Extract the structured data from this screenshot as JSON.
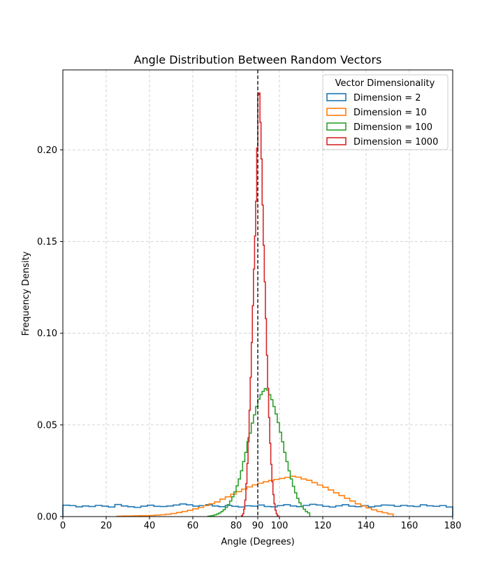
{
  "chart_data": {
    "type": "histogram",
    "title": "Angle Distribution Between Random Vectors",
    "xlabel": "Angle (Degrees)",
    "ylabel": "Frequency Density",
    "xlim": [
      0,
      180
    ],
    "ylim": [
      0,
      0.2436
    ],
    "xticks": [
      0,
      20,
      40,
      60,
      80,
      90,
      100,
      120,
      140,
      160,
      180
    ],
    "xtick_labels": [
      "0",
      "20",
      "40",
      "60",
      "80",
      "90",
      "100",
      "120",
      "140",
      "160",
      "180"
    ],
    "yticks": [
      0.0,
      0.05,
      0.1,
      0.15,
      0.2
    ],
    "ytick_labels": [
      "0.00",
      "0.05",
      "0.10",
      "0.15",
      "0.20"
    ],
    "grid": true,
    "reference_line": {
      "x": 90,
      "style": "dashed",
      "color": "#000000"
    },
    "legend": {
      "title": "Vector Dimensionality",
      "placement": "top-right"
    },
    "series": [
      {
        "name": "Dimension = 2",
        "color": "#1f77b4",
        "bin_width": 3,
        "bin_start": 0,
        "values": [
          0.0062,
          0.006,
          0.0053,
          0.0058,
          0.0055,
          0.0061,
          0.0057,
          0.0052,
          0.0066,
          0.0058,
          0.0054,
          0.005,
          0.0057,
          0.0062,
          0.0056,
          0.0055,
          0.0058,
          0.0063,
          0.0069,
          0.0064,
          0.0057,
          0.006,
          0.0065,
          0.0058,
          0.0054,
          0.0061,
          0.0056,
          0.0052,
          0.0059,
          0.0057,
          0.0063,
          0.0055,
          0.0053,
          0.006,
          0.0065,
          0.0058,
          0.0054,
          0.0061,
          0.0067,
          0.0063,
          0.0056,
          0.0052,
          0.0059,
          0.0065,
          0.0057,
          0.0054,
          0.006,
          0.0053,
          0.0058,
          0.0063,
          0.0062,
          0.0056,
          0.0061,
          0.0058,
          0.0055,
          0.0064,
          0.0059,
          0.0056,
          0.006,
          0.0052
        ]
      },
      {
        "name": "Dimension = 10",
        "color": "#ff7f0e",
        "bin_width": 2.5,
        "bin_start": 25,
        "values": [
          0.0002,
          0.0003,
          0.0003,
          0.0004,
          0.0005,
          0.0005,
          0.0006,
          0.0008,
          0.001,
          0.0013,
          0.0017,
          0.0022,
          0.0028,
          0.0034,
          0.0042,
          0.005,
          0.006,
          0.007,
          0.008,
          0.0095,
          0.0108,
          0.0122,
          0.0136,
          0.015,
          0.0162,
          0.0173,
          0.0182,
          0.019,
          0.0197,
          0.0203,
          0.0208,
          0.0214,
          0.022,
          0.0215,
          0.0205,
          0.0198,
          0.0185,
          0.0172,
          0.016,
          0.0145,
          0.013,
          0.0115,
          0.01,
          0.0085,
          0.007,
          0.0058,
          0.0047,
          0.0037,
          0.0028,
          0.0021,
          0.0014
        ]
      },
      {
        "name": "Dimension = 100",
        "color": "#2ca02c",
        "bin_width": 1,
        "bin_start": 67,
        "values": [
          0.0002,
          0.0004,
          0.0006,
          0.001,
          0.0014,
          0.002,
          0.0028,
          0.0038,
          0.005,
          0.0065,
          0.0085,
          0.0108,
          0.0135,
          0.0168,
          0.0205,
          0.025,
          0.03,
          0.035,
          0.0408,
          0.0455,
          0.051,
          0.0555,
          0.06,
          0.064,
          0.0665,
          0.0683,
          0.0698,
          0.069,
          0.0665,
          0.0638,
          0.06,
          0.056,
          0.0513,
          0.046,
          0.0408,
          0.035,
          0.03,
          0.025,
          0.0205,
          0.0165,
          0.013,
          0.01,
          0.0075,
          0.0055,
          0.004,
          0.0028,
          0.002
        ]
      },
      {
        "name": "Dimension = 1000",
        "color": "#d62728",
        "bin_width": 0.5,
        "bin_start": 82.5,
        "values": [
          0.0005,
          0.0015,
          0.004,
          0.009,
          0.018,
          0.029,
          0.043,
          0.058,
          0.076,
          0.095,
          0.115,
          0.135,
          0.153,
          0.172,
          0.201,
          0.23,
          0.231,
          0.215,
          0.195,
          0.17,
          0.148,
          0.128,
          0.108,
          0.088,
          0.07,
          0.054,
          0.04,
          0.0285,
          0.019,
          0.012,
          0.007,
          0.0035,
          0.0015,
          0.0005
        ]
      }
    ]
  }
}
